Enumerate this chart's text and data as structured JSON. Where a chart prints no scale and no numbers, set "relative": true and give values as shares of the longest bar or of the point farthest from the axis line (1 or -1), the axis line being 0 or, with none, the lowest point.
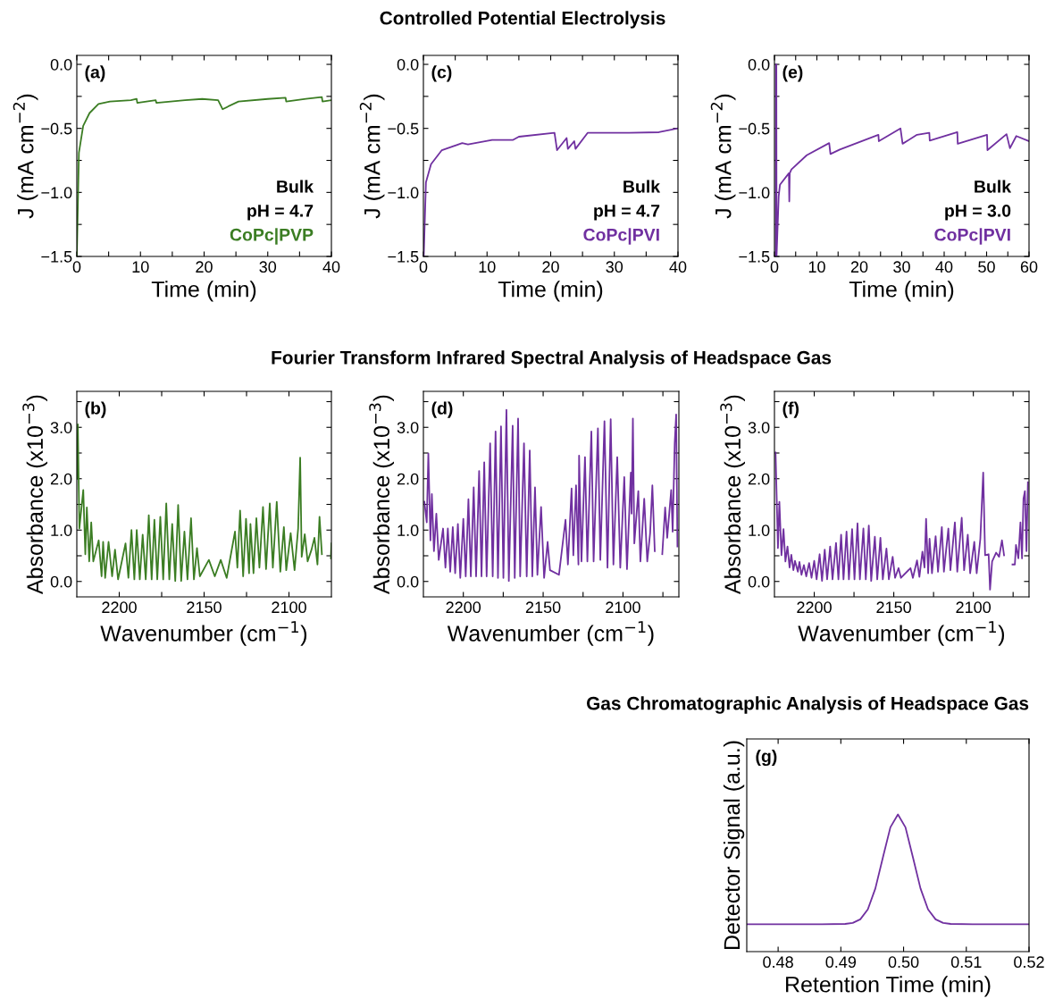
{
  "chart_data": [
    {
      "type": "line",
      "xlabel": "Time (min)",
      "ylabel": "J (mA cm$^{−2}$)",
      "annotations": [
        "(a)",
        "Bulk",
        "pH = 4.7"
      ],
      "xlim": [
        0,
        40
      ],
      "ylim": [
        -1.5,
        0.07
      ],
      "xticks": [
        0,
        {
          "value": 5,
          "label": null
        },
        10,
        {
          "value": 15,
          "label": null
        },
        20,
        {
          "value": 25,
          "label": null
        },
        30,
        {
          "value": 35,
          "label": null
        },
        40
      ],
      "yticks": [
        {
          "value": 0,
          "label": "0.0"
        },
        {
          "value": -0.25,
          "label": null
        },
        {
          "value": -0.5,
          "label": "−0.5"
        },
        {
          "value": -0.75,
          "label": null
        },
        {
          "value": -1.0,
          "label": "−1.0"
        },
        {
          "value": -1.25,
          "label": null
        },
        {
          "value": -1.5,
          "label": "−1.5"
        }
      ],
      "series": [
        {
          "name": "CoPc|PVP",
          "color": "#3b7d23",
          "x": [
            0.0,
            0.33,
            1.0,
            2.0,
            3.4,
            5.2,
            8.5,
            9.4,
            9.5,
            12.4,
            12.5,
            17,
            19.7,
            22.2,
            22.9,
            25.4,
            30,
            32.8,
            32.9,
            36,
            38.5,
            38.6,
            40
          ],
          "values": [
            -1.5,
            -0.69,
            -0.48,
            -0.38,
            -0.31,
            -0.29,
            -0.28,
            -0.27,
            -0.3,
            -0.28,
            -0.3,
            -0.28,
            -0.27,
            -0.28,
            -0.35,
            -0.29,
            -0.27,
            -0.26,
            -0.29,
            -0.27,
            -0.255,
            -0.29,
            -0.28
          ]
        }
      ]
    },
    {
      "type": "line",
      "title": "Controlled Potential Electrolysis",
      "xlabel": "Time (min)",
      "ylabel": "J (mA cm$^{−2}$)",
      "annotations": [
        "(c)",
        "Bulk",
        "pH = 4.7"
      ],
      "xlim": [
        0,
        40
      ],
      "ylim": [
        -1.5,
        0.07
      ],
      "xticks": [
        0,
        {
          "value": 5,
          "label": null
        },
        10,
        {
          "value": 15,
          "label": null
        },
        20,
        {
          "value": 25,
          "label": null
        },
        30,
        {
          "value": 35,
          "label": null
        },
        40
      ],
      "yticks": [
        {
          "value": 0,
          "label": "0.0"
        },
        {
          "value": -0.25,
          "label": null
        },
        {
          "value": -0.5,
          "label": "−0.5"
        },
        {
          "value": -0.75,
          "label": null
        },
        {
          "value": -1.0,
          "label": "−1.0"
        },
        {
          "value": -1.25,
          "label": null
        },
        {
          "value": -1.5,
          "label": "−1.5"
        }
      ],
      "series": [
        {
          "name": "CoPc|PVI",
          "color": "#7030a0",
          "x": [
            0.05,
            0.4,
            1.2,
            2.9,
            6.1,
            7.0,
            10.8,
            14.1,
            15.0,
            20.6,
            21.0,
            22.5,
            22.7,
            23.7,
            23.9,
            25.8,
            32.3,
            37.0,
            40
          ],
          "values": [
            -1.5,
            -0.92,
            -0.78,
            -0.67,
            -0.615,
            -0.625,
            -0.59,
            -0.59,
            -0.565,
            -0.535,
            -0.67,
            -0.575,
            -0.66,
            -0.6,
            -0.66,
            -0.535,
            -0.535,
            -0.53,
            -0.5
          ]
        }
      ]
    },
    {
      "type": "line",
      "xlabel": "Time (min)",
      "ylabel": "J (mA cm$^{−2}$)",
      "annotations": [
        "(e)",
        "Bulk",
        "pH = 3.0"
      ],
      "xlim": [
        0,
        60
      ],
      "ylim": [
        -1.5,
        0.07
      ],
      "xticks": [
        0,
        {
          "value": 5,
          "label": null
        },
        10,
        {
          "value": 15,
          "label": null
        },
        20,
        {
          "value": 25,
          "label": null
        },
        30,
        {
          "value": 35,
          "label": null
        },
        40,
        {
          "value": 45,
          "label": null
        },
        50,
        {
          "value": 55,
          "label": null
        },
        60
      ],
      "yticks": [
        {
          "value": 0,
          "label": "0.0"
        },
        {
          "value": -0.25,
          "label": null
        },
        {
          "value": -0.5,
          "label": "−0.5"
        },
        {
          "value": -0.75,
          "label": null
        },
        {
          "value": -1.0,
          "label": "−1.0"
        },
        {
          "value": -1.25,
          "label": null
        },
        {
          "value": -1.5,
          "label": "−1.5"
        }
      ],
      "series": [
        {
          "name": "CoPc|PVI",
          "color": "#7030a0",
          "x": [
            0.3,
            0.35,
            0.45,
            0.5,
            1.0,
            1.3,
            3.4,
            3.5,
            3.6,
            4.0,
            7.6,
            12.9,
            13.2,
            15.4,
            24.5,
            24.6,
            29.7,
            30.2,
            33.6,
            36.5,
            36.6,
            43.1,
            43.2,
            50.1,
            50.2,
            54.7,
            55.5,
            57,
            60
          ],
          "values": [
            -1.5,
            0.0,
            0.0,
            -1.5,
            -1.03,
            -0.94,
            -0.85,
            -1.07,
            -0.85,
            -0.82,
            -0.71,
            -0.615,
            -0.7,
            -0.665,
            -0.55,
            -0.6,
            -0.5,
            -0.62,
            -0.55,
            -0.535,
            -0.595,
            -0.53,
            -0.62,
            -0.55,
            -0.67,
            -0.545,
            -0.655,
            -0.56,
            -0.6
          ]
        }
      ]
    },
    {
      "type": "line",
      "xlabel": "Wavenumber (cm$^{−1}$)",
      "ylabel": "Absorbance (x10$^{−3}$)",
      "annotations": [
        "(b)"
      ],
      "xlim": [
        2225,
        2075
      ],
      "ylim": [
        -0.3,
        3.7
      ],
      "xticks": [
        2200,
        {
          "value": 2175,
          "label": null
        },
        2150,
        {
          "value": 2125,
          "label": null
        },
        2100
      ],
      "yticks": [
        {
          "value": 0,
          "label": "0.0"
        },
        {
          "value": 0.5,
          "label": null
        },
        {
          "value": 1,
          "label": "1.0"
        },
        {
          "value": 1.5,
          "label": null
        },
        {
          "value": 2,
          "label": "2.0"
        },
        {
          "value": 2.5,
          "label": null
        },
        {
          "value": 3,
          "label": "3.0"
        },
        {
          "value": 3.5,
          "label": null
        }
      ],
      "series": [
        {
          "color": "#3b7d23",
          "x": [
            2224.9,
            2224.4,
            2223.5,
            2221.2,
            2220.0,
            2219.1,
            2217.7,
            2216.5,
            2215.3,
            2212.1,
            2210.4,
            2209.5,
            2208.3,
            2206.3,
            2204.2,
            2202.5,
            2200.7,
            2196.3,
            2194.6,
            2192.8,
            2191.1,
            2189.7,
            2187.9,
            2186.2,
            2184.4,
            2182.6,
            2180.9,
            2179.3,
            2177.6,
            2175.8,
            2174.1,
            2172.3,
            2170.5,
            2168.8,
            2167.0,
            2165.3,
            2163.5,
            2161.6,
            2159.8,
            2157.7,
            2156.0,
            2154.2,
            2152.5,
            2147.2,
            2143.7,
            2140.2,
            2136.7,
            2131.8,
            2130.4,
            2128.8,
            2127.0,
            2125.3,
            2123.5,
            2122.7,
            2120.9,
            2119.2,
            2117.4,
            2115.3,
            2113.5,
            2111.3,
            2109.5,
            2107.2,
            2105.1,
            2103.0,
            2101.6,
            2099.0,
            2096.7,
            2094.6,
            2093.4,
            2092.5,
            2090.7,
            2089.0,
            2086.7,
            2085.0,
            2083.2,
            2082.0,
            2080.6,
            2078.8,
            2077.1,
            2075.3,
            2075.0
          ],
          "values": [
            2.0,
            3.06,
            1.03,
            1.78,
            0.53,
            1.44,
            0.39,
            1.15,
            0.39,
            0.8,
            0.1,
            0.77,
            0.07,
            0.77,
            0.1,
            0.62,
            0.04,
            0.74,
            0.07,
            1.0,
            0.04,
            1.0,
            0.04,
            0.91,
            0.04,
            1.29,
            0.04,
            1.2,
            0.04,
            1.26,
            0.04,
            1.52,
            0.04,
            1.12,
            0.01,
            1.49,
            0.01,
            0.97,
            0.04,
            1.23,
            0.04,
            0.65,
            0.1,
            0.42,
            0.1,
            0.42,
            0.07,
            0.97,
            0.27,
            1.38,
            0.1,
            1.22,
            0.16,
            1.12,
            0.16,
            1.23,
            0.27,
            1.45,
            0.24,
            1.52,
            0.27,
            1.55,
            0.19,
            1.06,
            0.22,
            0.94,
            0.22,
            1.03,
            2.41,
            0.48,
            0.92,
            0.39,
            0.62,
            0.85,
            0.33,
            1.26,
            0.53,
            null,
            null,
            0.45,
            0.74
          ]
        }
      ]
    },
    {
      "type": "line",
      "title": "Fourier Transform Infrared Spectral Analysis of Headspace Gas",
      "xlabel": "Wavenumber (cm$^{−1}$)",
      "ylabel": "Absorbance (x10$^{−3}$)",
      "annotations": [
        "(d)"
      ],
      "xlim": [
        2225,
        2065
      ],
      "ylim": [
        -0.3,
        3.7
      ],
      "xticks": [
        2200,
        {
          "value": 2175,
          "label": null
        },
        2150,
        {
          "value": 2125,
          "label": null
        },
        2100,
        {
          "value": 2075,
          "label": null
        }
      ],
      "yticks": [
        {
          "value": 0,
          "label": "0.0"
        },
        {
          "value": 0.5,
          "label": null
        },
        {
          "value": 1,
          "label": "1.0"
        },
        {
          "value": 1.5,
          "label": null
        },
        {
          "value": 2,
          "label": "2.0"
        },
        {
          "value": 2.5,
          "label": null
        },
        {
          "value": 3,
          "label": "3.0"
        },
        {
          "value": 3.5,
          "label": null
        }
      ],
      "series": [
        {
          "color": "#7030a0",
          "x": [
            2224.4,
            2222.9,
            2221.9,
            2220.6,
            2219.7,
            2218.4,
            2216.9,
            2215.4,
            2212.7,
            2211.2,
            2209.7,
            2208.2,
            2206.6,
            2205.1,
            2203.4,
            2201.9,
            2200.0,
            2198.5,
            2196.8,
            2195.3,
            2193.5,
            2192.0,
            2190.1,
            2188.6,
            2186.9,
            2185.4,
            2183.2,
            2181.6,
            2179.8,
            2178.3,
            2176.4,
            2174.9,
            2173.0,
            2171.5,
            2169.1,
            2167.8,
            2165.7,
            2164.4,
            2162.0,
            2160.3,
            2158.4,
            2156.8,
            2155.1,
            2153.6,
            2151.3,
            2149.4,
            2147.2,
            2145.7,
            2140.1,
            2136.0,
            2134.5,
            2132.2,
            2131.1,
            2129.4,
            2127.9,
            2127.5,
            2126.0,
            2123.8,
            2122.3,
            2119.8,
            2118.4,
            2115.7,
            2114.2,
            2111.6,
            2109.7,
            2107.7,
            2106.0,
            2103.6,
            2101.7,
            2099.2,
            2097.5,
            2095.1,
            2094.6,
            2093.8,
            2092.9,
            2090.4,
            2089.1,
            2086.7,
            2084.8,
            2083.0,
            2081.6,
            2080.1,
            2078.8,
            2076.8,
            2075.4,
            2073.6,
            2072.3,
            2070.8,
            2069.8,
            2068.9,
            2067.6,
            2066.7,
            2065.9
          ],
          "values": [
            1.55,
            1.15,
            2.49,
            0.8,
            1.7,
            0.59,
            1.32,
            0.42,
            1.03,
            0.27,
            1.03,
            0.19,
            1.06,
            0.16,
            1.12,
            0.07,
            1.22,
            0.1,
            1.6,
            0.1,
            1.83,
            0.1,
            2.15,
            0.1,
            2.32,
            0.1,
            2.69,
            0.1,
            2.92,
            0.07,
            3.02,
            0.07,
            3.34,
            0.01,
            3.03,
            0.07,
            3.17,
            0.1,
            2.69,
            0.1,
            2.55,
            0.1,
            1.83,
            0.13,
            1.45,
            0.07,
            0.77,
            0.22,
            0.13,
            1.2,
            0.33,
            1.81,
            0.51,
            1.87,
            0.33,
            2.45,
            0.39,
            2.42,
            0.39,
            2.92,
            0.39,
            2.98,
            0.42,
            3.12,
            0.27,
            3.16,
            0.33,
            2.42,
            0.27,
            2.03,
            0.24,
            2.12,
            1.32,
            3.17,
            0.74,
            1.76,
            0.39,
            1.61,
            0.39,
            0.94,
            1.87,
            0.59,
            null,
            null,
            0.53,
            1.44,
            0.85,
            1.41,
            1.78,
            0.97,
            2.7,
            3.25,
            0.68
          ]
        }
      ]
    },
    {
      "type": "line",
      "xlabel": "Wavenumber (cm$^{−1}$)",
      "ylabel": "Absorbance (x10$^{−3}$)",
      "annotations": [
        "(f)"
      ],
      "xlim": [
        2225,
        2065
      ],
      "ylim": [
        -0.3,
        3.7
      ],
      "xticks": [
        2200,
        {
          "value": 2175,
          "label": null
        },
        2150,
        {
          "value": 2125,
          "label": null
        },
        2100,
        {
          "value": 2075,
          "label": null
        }
      ],
      "yticks": [
        {
          "value": 0,
          "label": "0.0"
        },
        {
          "value": 0.5,
          "label": null
        },
        {
          "value": 1,
          "label": "1.0"
        },
        {
          "value": 1.5,
          "label": null
        },
        {
          "value": 2,
          "label": "2.0"
        },
        {
          "value": 2.5,
          "label": null
        },
        {
          "value": 3,
          "label": "3.0"
        },
        {
          "value": 3.5,
          "label": null
        }
      ],
      "series": [
        {
          "color": "#7030a0",
          "x": [
            2224.3,
            2222.8,
            2221.9,
            2220.6,
            2219.3,
            2218.1,
            2216.8,
            2215.5,
            2214.4,
            2213.1,
            2212.1,
            2210.3,
            2209.3,
            2208.0,
            2206.5,
            2205.0,
            2203.2,
            2201.7,
            2200.0,
            2198.5,
            2196.6,
            2195.1,
            2193.4,
            2191.9,
            2190.0,
            2188.5,
            2186.3,
            2184.8,
            2183.1,
            2181.6,
            2179.7,
            2178.2,
            2176.2,
            2174.7,
            2172.8,
            2171.3,
            2169.1,
            2167.6,
            2165.7,
            2164.2,
            2161.9,
            2160.4,
            2158.4,
            2156.9,
            2154.6,
            2153.1,
            2150.7,
            2149.2,
            2147.0,
            2145.5,
            2139.5,
            2138.0,
            2135.4,
            2133.9,
            2132.0,
            2130.7,
            2129.7,
            2128.4,
            2127.5,
            2126.0,
            2123.7,
            2122.2,
            2119.8,
            2118.5,
            2115.7,
            2114.4,
            2111.6,
            2110.1,
            2107.3,
            2105.8,
            2103.5,
            2102.0,
            2099.4,
            2097.9,
            2095.6,
            2093.8,
            2092.6,
            2090.4,
            2089.5,
            2088.2,
            2085.7,
            2083.8,
            2082.0,
            2080.7,
            2079.2,
            2076.4,
            2075.4,
            2073.9,
            2073.2,
            2071.7,
            2070.4,
            2069.4,
            2068.5,
            2067.6,
            2066.6,
            2065.7
          ],
          "values": [
            2.51,
            0.65,
            1.55,
            0.51,
            1.02,
            0.39,
            0.68,
            0.27,
            0.52,
            0.22,
            0.4,
            0.19,
            0.38,
            0.13,
            0.32,
            0.1,
            0.36,
            0.07,
            0.4,
            0.04,
            0.53,
            0.01,
            0.62,
            0.04,
            0.68,
            0.04,
            0.75,
            0.04,
            0.91,
            0.04,
            0.97,
            0.04,
            1.02,
            0.04,
            1.13,
            0.04,
            1.03,
            0.04,
            1.09,
            0.01,
            0.87,
            0.04,
            0.85,
            0.04,
            0.64,
            0.04,
            0.48,
            0.07,
            0.26,
            0.07,
            0.26,
            0.07,
            0.41,
            0.09,
            0.58,
            0.27,
            1.22,
            0.16,
            0.83,
            0.16,
            0.88,
            0.19,
            1.06,
            0.19,
            1.03,
            0.22,
            1.15,
            0.19,
            1.24,
            0.22,
            0.91,
            0.16,
            0.77,
            0.16,
            0.83,
            2.12,
            0.51,
            0.53,
            -0.16,
            0.39,
            0.56,
            0.48,
            0.8,
            0.51,
            null,
            null,
            0.33,
            0.33,
            0.71,
            0.45,
            1.15,
            0.45,
            1.61,
            1.76,
            0.59,
            1.93
          ]
        }
      ]
    },
    {
      "type": "line",
      "title": "Gas Chromatographic Analysis of Headspace Gas",
      "xlabel": "Retention Time (min)",
      "ylabel": "Detector Signal (a.u.)",
      "annotations": [
        "(g)"
      ],
      "relative": true,
      "xlim": [
        0.475,
        0.52
      ],
      "xticks": [
        0.48,
        0.49,
        {
          "value": 0.5,
          "label": "0.50"
        },
        0.51,
        {
          "value": 0.52,
          "label": "0.52"
        }
      ],
      "series": [
        {
          "color": "#7030a0",
          "x": [
            0.475,
            0.487,
            0.4907,
            0.4919,
            0.4931,
            0.4943,
            0.4955,
            0.4967,
            0.4979,
            0.4991,
            0.5003,
            0.5015,
            0.5027,
            0.5039,
            0.5051,
            0.5063,
            0.5075,
            0.511,
            0.52
          ],
          "values": [
            0.2,
            0.2,
            0.202,
            0.209,
            0.235,
            0.308,
            0.46,
            0.685,
            0.906,
            1,
            0.906,
            0.685,
            0.46,
            0.308,
            0.235,
            0.209,
            0.202,
            0.2,
            0.2
          ]
        }
      ]
    }
  ]
}
